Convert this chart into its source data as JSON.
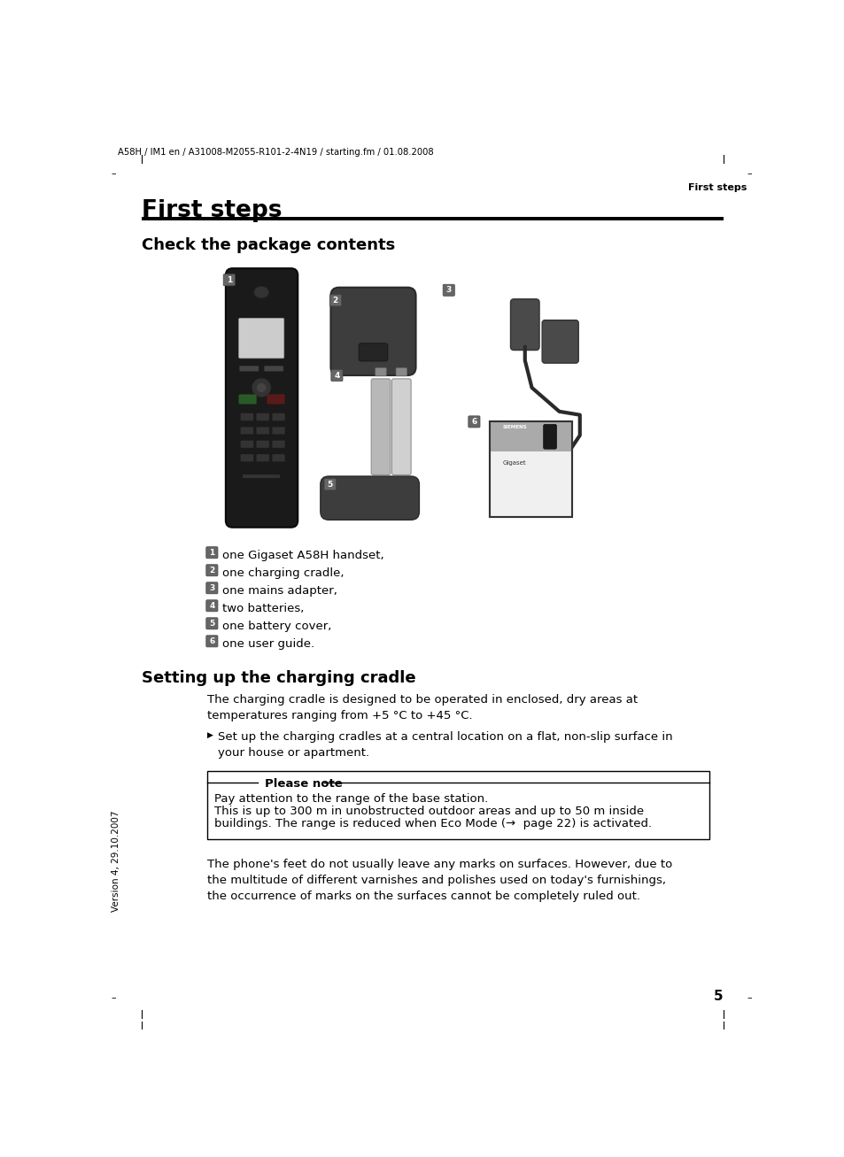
{
  "header_text": "A58H / IM1 en / A31008-M2055-R101-2-4N19 / starting.fm / 01.08.2008",
  "page_header_right": "First steps",
  "title": "First steps",
  "section1_title": "Check the package contents",
  "items": [
    {
      "num": "1",
      "text": "one Gigaset A58H handset,"
    },
    {
      "num": "2",
      "text": "one charging cradle,"
    },
    {
      "num": "3",
      "text": "one mains adapter,"
    },
    {
      "num": "4",
      "text": "two batteries,"
    },
    {
      "num": "5",
      "text": "one battery cover,"
    },
    {
      "num": "6",
      "text": "one user guide."
    }
  ],
  "section2_title": "Setting up the charging cradle",
  "section2_para": "The charging cradle is designed to be operated in enclosed, dry areas at\ntemperatures ranging from +5 °C to +45 °C.",
  "section2_bullet": "Set up the charging cradles at a central location on a flat, non-slip surface in\nyour house or apartment.",
  "note_title": "Please note",
  "note_line1": "Pay attention to the range of the base station.",
  "note_line2": "This is up to 300 m in unobstructed outdoor areas and up to 50 m inside",
  "note_line3": "buildings. The range is reduced when Eco Mode (→  page 22) is activated.",
  "section2_footer": "The phone's feet do not usually leave any marks on surfaces. However, due to\nthe multitude of different varnishes and polishes used on today's furnishings,\nthe occurrence of marks on the surfaces cannot be completely ruled out.",
  "page_number": "5",
  "sidebar_text": "Version 4, 29.10.2007",
  "bg_color": "#ffffff"
}
